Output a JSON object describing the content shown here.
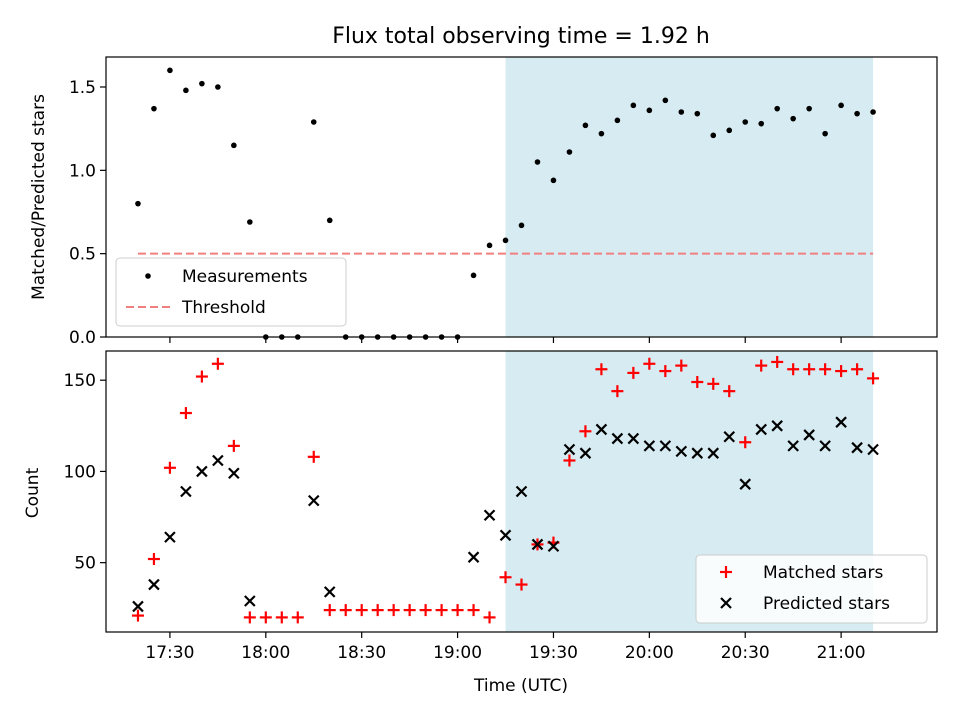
{
  "chart_data": [
    {
      "type": "scatter",
      "title": "Flux total observing time = 1.92 h",
      "ylabel": "Matched/Predicted stars",
      "xlabel": "",
      "ylim": [
        0,
        1.68
      ],
      "yticks": [
        0.0,
        0.5,
        1.0,
        1.5
      ],
      "ytick_labels": [
        "0.0",
        "0.5",
        "1.0",
        "1.5"
      ],
      "shaded_interval": [
        "19:15",
        "21:10"
      ],
      "series": [
        {
          "name": "Measurements",
          "marker": "dot",
          "color": "#000000",
          "x": [
            "17:20",
            "17:25",
            "17:30",
            "17:35",
            "17:40",
            "17:45",
            "17:50",
            "17:55",
            "18:00",
            "18:05",
            "18:10",
            "18:15",
            "18:20",
            "18:25",
            "18:30",
            "18:35",
            "18:40",
            "18:45",
            "18:50",
            "18:55",
            "19:00",
            "19:05",
            "19:10",
            "19:15",
            "19:20",
            "19:25",
            "19:30",
            "19:35",
            "19:40",
            "19:45",
            "19:50",
            "19:55",
            "20:00",
            "20:05",
            "20:10",
            "20:15",
            "20:20",
            "20:25",
            "20:30",
            "20:35",
            "20:40",
            "20:45",
            "20:50",
            "20:55",
            "21:00",
            "21:05",
            "21:10"
          ],
          "values": [
            0.8,
            1.37,
            1.6,
            1.48,
            1.52,
            1.5,
            1.15,
            0.69,
            0.0,
            0.0,
            0.0,
            1.29,
            0.7,
            0.0,
            0.0,
            0.0,
            0.0,
            0.0,
            0.0,
            0.0,
            0.0,
            0.37,
            0.55,
            0.58,
            0.67,
            1.05,
            0.94,
            1.11,
            1.27,
            1.22,
            1.3,
            1.39,
            1.36,
            1.42,
            1.35,
            1.34,
            1.21,
            1.24,
            1.29,
            1.28,
            1.37,
            1.31,
            1.37,
            1.22,
            1.39,
            1.34,
            1.35
          ]
        },
        {
          "name": "Threshold",
          "marker": "dashed-line",
          "color": "#f08080",
          "x": [
            "17:20",
            "21:10"
          ],
          "values": [
            0.5,
            0.5
          ]
        }
      ],
      "legend": {
        "position": "lower-left",
        "entries": [
          "Measurements",
          "Threshold"
        ]
      }
    },
    {
      "type": "scatter",
      "title": "",
      "xlabel": "Time (UTC)",
      "ylabel": "Count",
      "ylim": [
        12,
        166
      ],
      "yticks": [
        50,
        100,
        150
      ],
      "ytick_labels": [
        "50",
        "100",
        "150"
      ],
      "xlim": [
        "17:10",
        "21:30"
      ],
      "xticks": [
        "17:30",
        "18:00",
        "18:30",
        "19:00",
        "19:30",
        "20:00",
        "20:30",
        "21:00"
      ],
      "shaded_interval": [
        "19:15",
        "21:10"
      ],
      "series": [
        {
          "name": "Matched stars",
          "marker": "plus",
          "color": "#ff0000",
          "x": [
            "17:20",
            "17:25",
            "17:30",
            "17:35",
            "17:40",
            "17:45",
            "17:50",
            "17:55",
            "18:00",
            "18:05",
            "18:10",
            "18:15",
            "18:20",
            "18:25",
            "18:30",
            "18:35",
            "18:40",
            "18:45",
            "18:50",
            "18:55",
            "19:00",
            "19:05",
            "19:10",
            "19:15",
            "19:20",
            "19:25",
            "19:30",
            "19:35",
            "19:40",
            "19:45",
            "19:50",
            "19:55",
            "20:00",
            "20:05",
            "20:10",
            "20:15",
            "20:20",
            "20:25",
            "20:30",
            "20:35",
            "20:40",
            "20:45",
            "20:50",
            "20:55",
            "21:00",
            "21:05",
            "21:10"
          ],
          "values": [
            21,
            52,
            102,
            132,
            152,
            159,
            114,
            20,
            20,
            20,
            20,
            108,
            24,
            24,
            24,
            24,
            24,
            24,
            24,
            24,
            24,
            24,
            20,
            42,
            38,
            60,
            61,
            106,
            122,
            156,
            144,
            154,
            159,
            155,
            158,
            149,
            148,
            144,
            116,
            158,
            160,
            156,
            156,
            156,
            155,
            156,
            151
          ]
        },
        {
          "name": "Predicted stars",
          "marker": "x",
          "color": "#000000",
          "x": [
            "17:20",
            "17:25",
            "17:30",
            "17:35",
            "17:40",
            "17:45",
            "17:50",
            "17:55",
            "18:15",
            "18:20",
            "19:05",
            "19:10",
            "19:15",
            "19:20",
            "19:25",
            "19:30",
            "19:35",
            "19:40",
            "19:45",
            "19:50",
            "19:55",
            "20:00",
            "20:05",
            "20:10",
            "20:15",
            "20:20",
            "20:25",
            "20:30",
            "20:35",
            "20:40",
            "20:45",
            "20:50",
            "20:55",
            "21:00",
            "21:05",
            "21:10"
          ],
          "values": [
            26,
            38,
            64,
            89,
            100,
            106,
            99,
            29,
            84,
            34,
            53,
            76,
            65,
            89,
            60,
            59,
            112,
            110,
            123,
            118,
            118,
            114,
            114,
            111,
            110,
            110,
            119,
            93,
            123,
            125,
            114,
            120,
            114,
            127,
            113,
            112
          ]
        }
      ],
      "legend": {
        "position": "lower-right",
        "entries": [
          "Matched stars",
          "Predicted stars"
        ]
      }
    }
  ]
}
